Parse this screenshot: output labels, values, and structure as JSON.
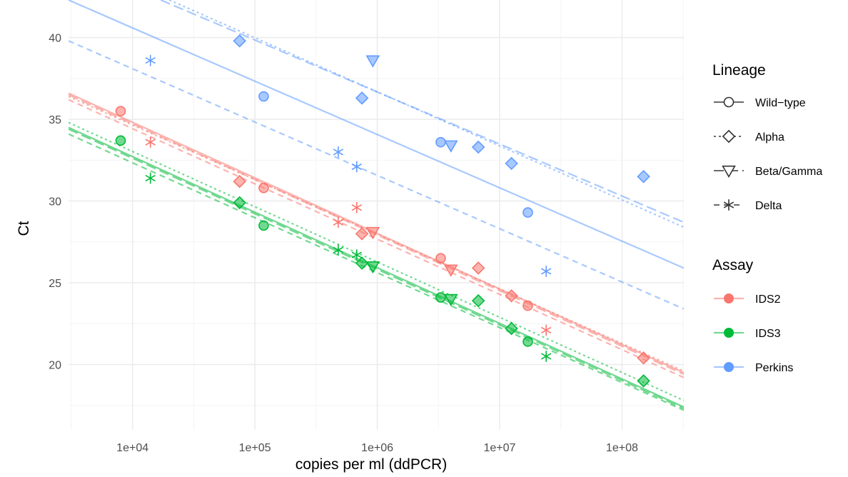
{
  "chart_data": {
    "type": "scatter",
    "title": "",
    "xlabel": "copies per ml (ddPCR)",
    "ylabel": "Ct",
    "x_scale": "log10",
    "xlim": [
      3000,
      320000000
    ],
    "ylim": [
      16.0,
      42.3
    ],
    "x_ticks": [
      10000,
      100000,
      1000000,
      10000000,
      100000000
    ],
    "x_tick_labels": [
      "1e+04",
      "1e+05",
      "1e+06",
      "1e+07",
      "1e+08"
    ],
    "y_ticks": [
      20,
      25,
      30,
      35,
      40
    ],
    "y_tick_labels": [
      "20",
      "25",
      "30",
      "35",
      "40"
    ],
    "grid": true,
    "legend_position": "right",
    "legends": [
      {
        "title": "Lineage",
        "entries": [
          {
            "label": "Wild−type",
            "shape": "circle",
            "linetype": "solid"
          },
          {
            "label": "Alpha",
            "shape": "diamond",
            "linetype": "dotted"
          },
          {
            "label": "Beta/Gamma",
            "shape": "triangle-down",
            "linetype": "longdash"
          },
          {
            "label": "Delta",
            "shape": "asterisk",
            "linetype": "dashed"
          }
        ]
      },
      {
        "title": "Assay",
        "entries": [
          {
            "label": "IDS2",
            "color": "#F8766D"
          },
          {
            "label": "IDS3",
            "color": "#00BA38"
          },
          {
            "label": "Perkins",
            "color": "#619CFF"
          }
        ]
      }
    ],
    "points": [
      {
        "assay": "IDS2",
        "lineage": "Wild-type",
        "x": 8000,
        "y": 35.5
      },
      {
        "assay": "IDS2",
        "lineage": "Wild-type",
        "x": 118000,
        "y": 30.8
      },
      {
        "assay": "IDS2",
        "lineage": "Wild-type",
        "x": 3300000,
        "y": 26.5
      },
      {
        "assay": "IDS2",
        "lineage": "Wild-type",
        "x": 17000000,
        "y": 23.6
      },
      {
        "assay": "IDS2",
        "lineage": "Alpha",
        "x": 75000,
        "y": 31.2
      },
      {
        "assay": "IDS2",
        "lineage": "Alpha",
        "x": 750000,
        "y": 28.0
      },
      {
        "assay": "IDS2",
        "lineage": "Alpha",
        "x": 6700000,
        "y": 25.9
      },
      {
        "assay": "IDS2",
        "lineage": "Alpha",
        "x": 12500000,
        "y": 24.2
      },
      {
        "assay": "IDS2",
        "lineage": "Alpha",
        "x": 150000000,
        "y": 20.4
      },
      {
        "assay": "IDS2",
        "lineage": "Beta/Gamma",
        "x": 920000,
        "y": 28.1
      },
      {
        "assay": "IDS2",
        "lineage": "Beta/Gamma",
        "x": 4000000,
        "y": 25.8
      },
      {
        "assay": "IDS2",
        "lineage": "Delta",
        "x": 14000,
        "y": 33.6
      },
      {
        "assay": "IDS2",
        "lineage": "Delta",
        "x": 480000,
        "y": 28.7
      },
      {
        "assay": "IDS2",
        "lineage": "Delta",
        "x": 680000,
        "y": 29.6
      },
      {
        "assay": "IDS2",
        "lineage": "Delta",
        "x": 24000000,
        "y": 22.1
      },
      {
        "assay": "IDS3",
        "lineage": "Wild-type",
        "x": 8000,
        "y": 33.7
      },
      {
        "assay": "IDS3",
        "lineage": "Wild-type",
        "x": 118000,
        "y": 28.5
      },
      {
        "assay": "IDS3",
        "lineage": "Wild-type",
        "x": 3300000,
        "y": 24.1
      },
      {
        "assay": "IDS3",
        "lineage": "Wild-type",
        "x": 17000000,
        "y": 21.4
      },
      {
        "assay": "IDS3",
        "lineage": "Alpha",
        "x": 75000,
        "y": 29.9
      },
      {
        "assay": "IDS3",
        "lineage": "Alpha",
        "x": 750000,
        "y": 26.2
      },
      {
        "assay": "IDS3",
        "lineage": "Alpha",
        "x": 6700000,
        "y": 23.9
      },
      {
        "assay": "IDS3",
        "lineage": "Alpha",
        "x": 12500000,
        "y": 22.2
      },
      {
        "assay": "IDS3",
        "lineage": "Alpha",
        "x": 150000000,
        "y": 19.0
      },
      {
        "assay": "IDS3",
        "lineage": "Beta/Gamma",
        "x": 920000,
        "y": 26.0
      },
      {
        "assay": "IDS3",
        "lineage": "Beta/Gamma",
        "x": 4000000,
        "y": 24.0
      },
      {
        "assay": "IDS3",
        "lineage": "Delta",
        "x": 14000,
        "y": 31.4
      },
      {
        "assay": "IDS3",
        "lineage": "Delta",
        "x": 480000,
        "y": 27.0
      },
      {
        "assay": "IDS3",
        "lineage": "Delta",
        "x": 680000,
        "y": 26.7
      },
      {
        "assay": "IDS3",
        "lineage": "Delta",
        "x": 24000000,
        "y": 20.5
      },
      {
        "assay": "Perkins",
        "lineage": "Wild-type",
        "x": 118000,
        "y": 36.4
      },
      {
        "assay": "Perkins",
        "lineage": "Wild-type",
        "x": 3300000,
        "y": 33.6
      },
      {
        "assay": "Perkins",
        "lineage": "Wild-type",
        "x": 17000000,
        "y": 29.3
      },
      {
        "assay": "Perkins",
        "lineage": "Alpha",
        "x": 75000,
        "y": 39.8
      },
      {
        "assay": "Perkins",
        "lineage": "Alpha",
        "x": 750000,
        "y": 36.3
      },
      {
        "assay": "Perkins",
        "lineage": "Alpha",
        "x": 6700000,
        "y": 33.3
      },
      {
        "assay": "Perkins",
        "lineage": "Alpha",
        "x": 12500000,
        "y": 32.3
      },
      {
        "assay": "Perkins",
        "lineage": "Alpha",
        "x": 150000000,
        "y": 31.5
      },
      {
        "assay": "Perkins",
        "lineage": "Beta/Gamma",
        "x": 920000,
        "y": 38.6
      },
      {
        "assay": "Perkins",
        "lineage": "Beta/Gamma",
        "x": 4000000,
        "y": 33.4
      },
      {
        "assay": "Perkins",
        "lineage": "Delta",
        "x": 14000,
        "y": 38.6
      },
      {
        "assay": "Perkins",
        "lineage": "Delta",
        "x": 480000,
        "y": 33.0
      },
      {
        "assay": "Perkins",
        "lineage": "Delta",
        "x": 680000,
        "y": 32.1
      },
      {
        "assay": "Perkins",
        "lineage": "Delta",
        "x": 24000000,
        "y": 25.7
      }
    ],
    "fit_lines": [
      {
        "assay": "IDS2",
        "lineage": "Wild-type",
        "x": [
          3000,
          320000000
        ],
        "y": [
          36.6,
          19.5
        ]
      },
      {
        "assay": "IDS2",
        "lineage": "Alpha",
        "x": [
          3000,
          320000000
        ],
        "y": [
          36.4,
          19.6
        ]
      },
      {
        "assay": "IDS2",
        "lineage": "Beta/Gamma",
        "x": [
          3000,
          320000000
        ],
        "y": [
          36.5,
          19.4
        ]
      },
      {
        "assay": "IDS2",
        "lineage": "Delta",
        "x": [
          3000,
          320000000
        ],
        "y": [
          36.2,
          19.2
        ]
      },
      {
        "assay": "IDS3",
        "lineage": "Wild-type",
        "x": [
          3000,
          320000000
        ],
        "y": [
          34.5,
          17.4
        ]
      },
      {
        "assay": "IDS3",
        "lineage": "Alpha",
        "x": [
          3000,
          320000000
        ],
        "y": [
          34.8,
          17.8
        ]
      },
      {
        "assay": "IDS3",
        "lineage": "Beta/Gamma",
        "x": [
          3000,
          320000000
        ],
        "y": [
          34.4,
          17.3
        ]
      },
      {
        "assay": "IDS3",
        "lineage": "Delta",
        "x": [
          3000,
          320000000
        ],
        "y": [
          34.1,
          17.2
        ]
      },
      {
        "assay": "Perkins",
        "lineage": "Wild-type",
        "x": [
          3000,
          320000000
        ],
        "y": [
          42.3,
          25.9
        ]
      },
      {
        "assay": "Perkins",
        "lineage": "Alpha",
        "x": [
          20000,
          320000000
        ],
        "y": [
          42.3,
          28.4
        ]
      },
      {
        "assay": "Perkins",
        "lineage": "Beta/Gamma",
        "x": [
          17000,
          320000000
        ],
        "y": [
          42.3,
          28.7
        ]
      },
      {
        "assay": "Perkins",
        "lineage": "Delta",
        "x": [
          3000,
          320000000
        ],
        "y": [
          39.8,
          23.4
        ]
      }
    ]
  },
  "colors": {
    "IDS2": "#F8766D",
    "IDS3": "#00BA38",
    "Perkins": "#619CFF",
    "grid_major": "#EBEBEB",
    "grid_minor": "#F4F4F4"
  }
}
